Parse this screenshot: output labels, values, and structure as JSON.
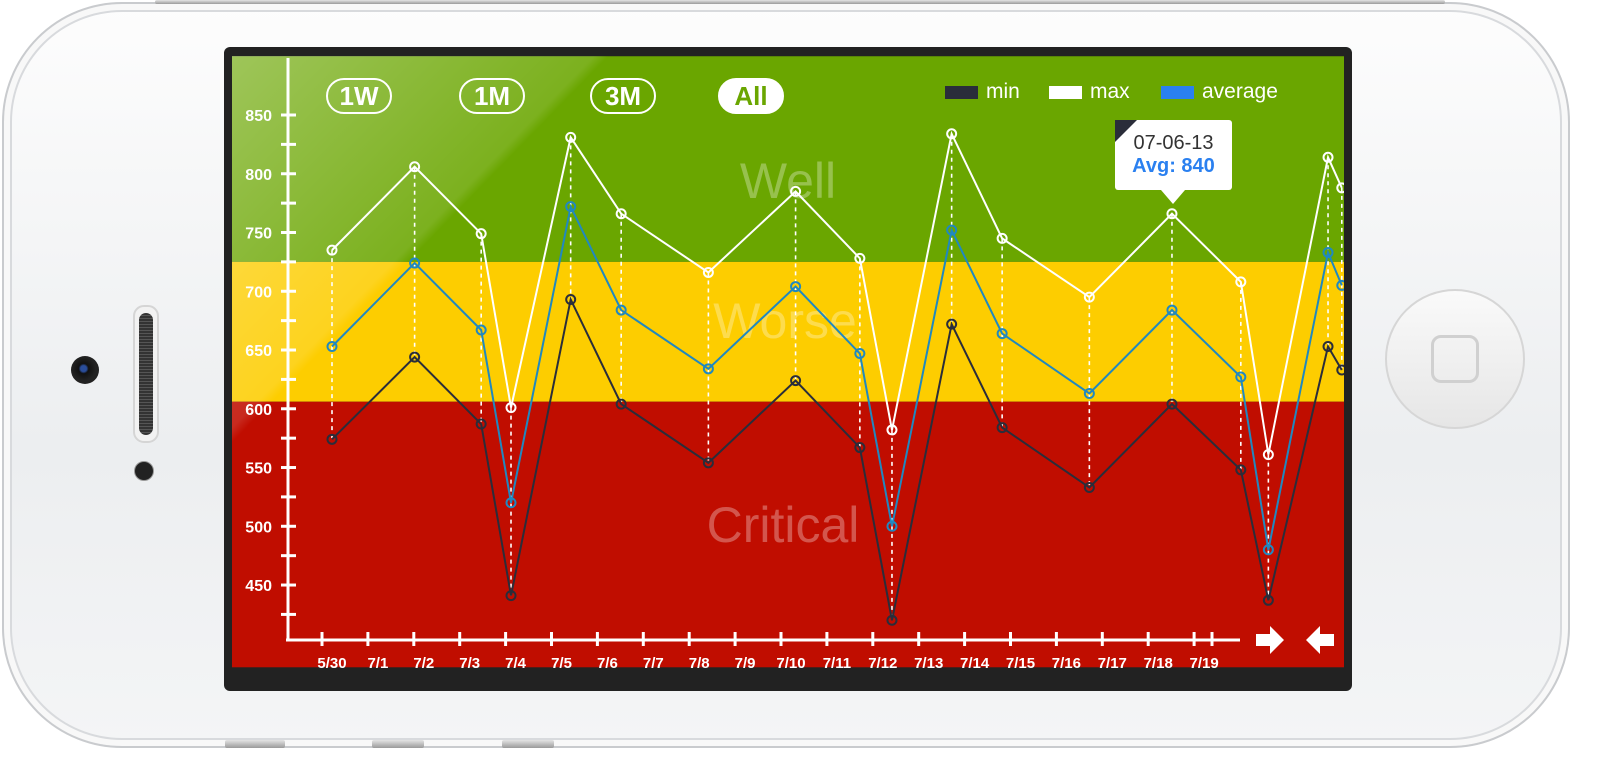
{
  "range_buttons": [
    {
      "label": "1W",
      "active": false
    },
    {
      "label": "1M",
      "active": false
    },
    {
      "label": "3M",
      "active": false
    },
    {
      "label": "All",
      "active": true
    }
  ],
  "legend": [
    {
      "label": "min",
      "color": "#2a2d3a"
    },
    {
      "label": "max",
      "color": "#ffffff"
    },
    {
      "label": "average",
      "color": "#2a80f0"
    }
  ],
  "tooltip": {
    "date": "07-06-13",
    "avg": "Avg: 840"
  },
  "zones": [
    {
      "label": "Well",
      "from": 725,
      "to": 900,
      "color": "#6aa600"
    },
    {
      "label": "Worse",
      "from": 606,
      "to": 725,
      "color": "#fdcd00"
    },
    {
      "label": "Critical",
      "from": 380,
      "to": 606,
      "color": "#c00d00"
    }
  ],
  "nav_icons": [
    "arrow-right-icon",
    "arrow-left-icon"
  ],
  "chart_data": {
    "type": "line",
    "title": "",
    "xlabel": "",
    "ylabel": "",
    "categories": [
      "5/30",
      "7/1",
      "7/2",
      "7/3",
      "7/4",
      "7/5",
      "7/6",
      "7/7",
      "7/8",
      "7/9",
      "7/10",
      "7/11",
      "7/12",
      "7/13",
      "7/14",
      "7/15",
      "7/16",
      "7/17",
      "7/18",
      "7/19"
    ],
    "yticks": [
      850,
      800,
      750,
      700,
      650,
      600,
      550,
      500,
      450
    ],
    "ylim": [
      400,
      880
    ],
    "grid": false,
    "legend_position": "top-right",
    "x": [
      0,
      1.8,
      3.25,
      3.9,
      5.2,
      6.3,
      8.2,
      10.1,
      11.5,
      12.2,
      13.5,
      14.6,
      16.5,
      18.3,
      19.8,
      20.4,
      21.7,
      22
    ],
    "series": [
      {
        "name": "min",
        "color": "#2a2d3a",
        "values": [
          574,
          644,
          587,
          441,
          693,
          604,
          554,
          624,
          567,
          420,
          672,
          584,
          533,
          604,
          548,
          437,
          653,
          633
        ]
      },
      {
        "name": "max",
        "color": "#ffffff",
        "values": [
          735,
          806,
          749,
          601,
          831,
          766,
          716,
          785,
          728,
          582,
          834,
          745,
          695,
          766,
          708,
          561,
          814,
          788
        ]
      },
      {
        "name": "average",
        "color": "#2a80f0",
        "values": [
          653,
          724,
          667,
          520,
          772,
          684,
          634,
          704,
          647,
          500,
          752,
          664,
          613,
          684,
          627,
          480,
          733,
          705
        ]
      }
    ]
  }
}
